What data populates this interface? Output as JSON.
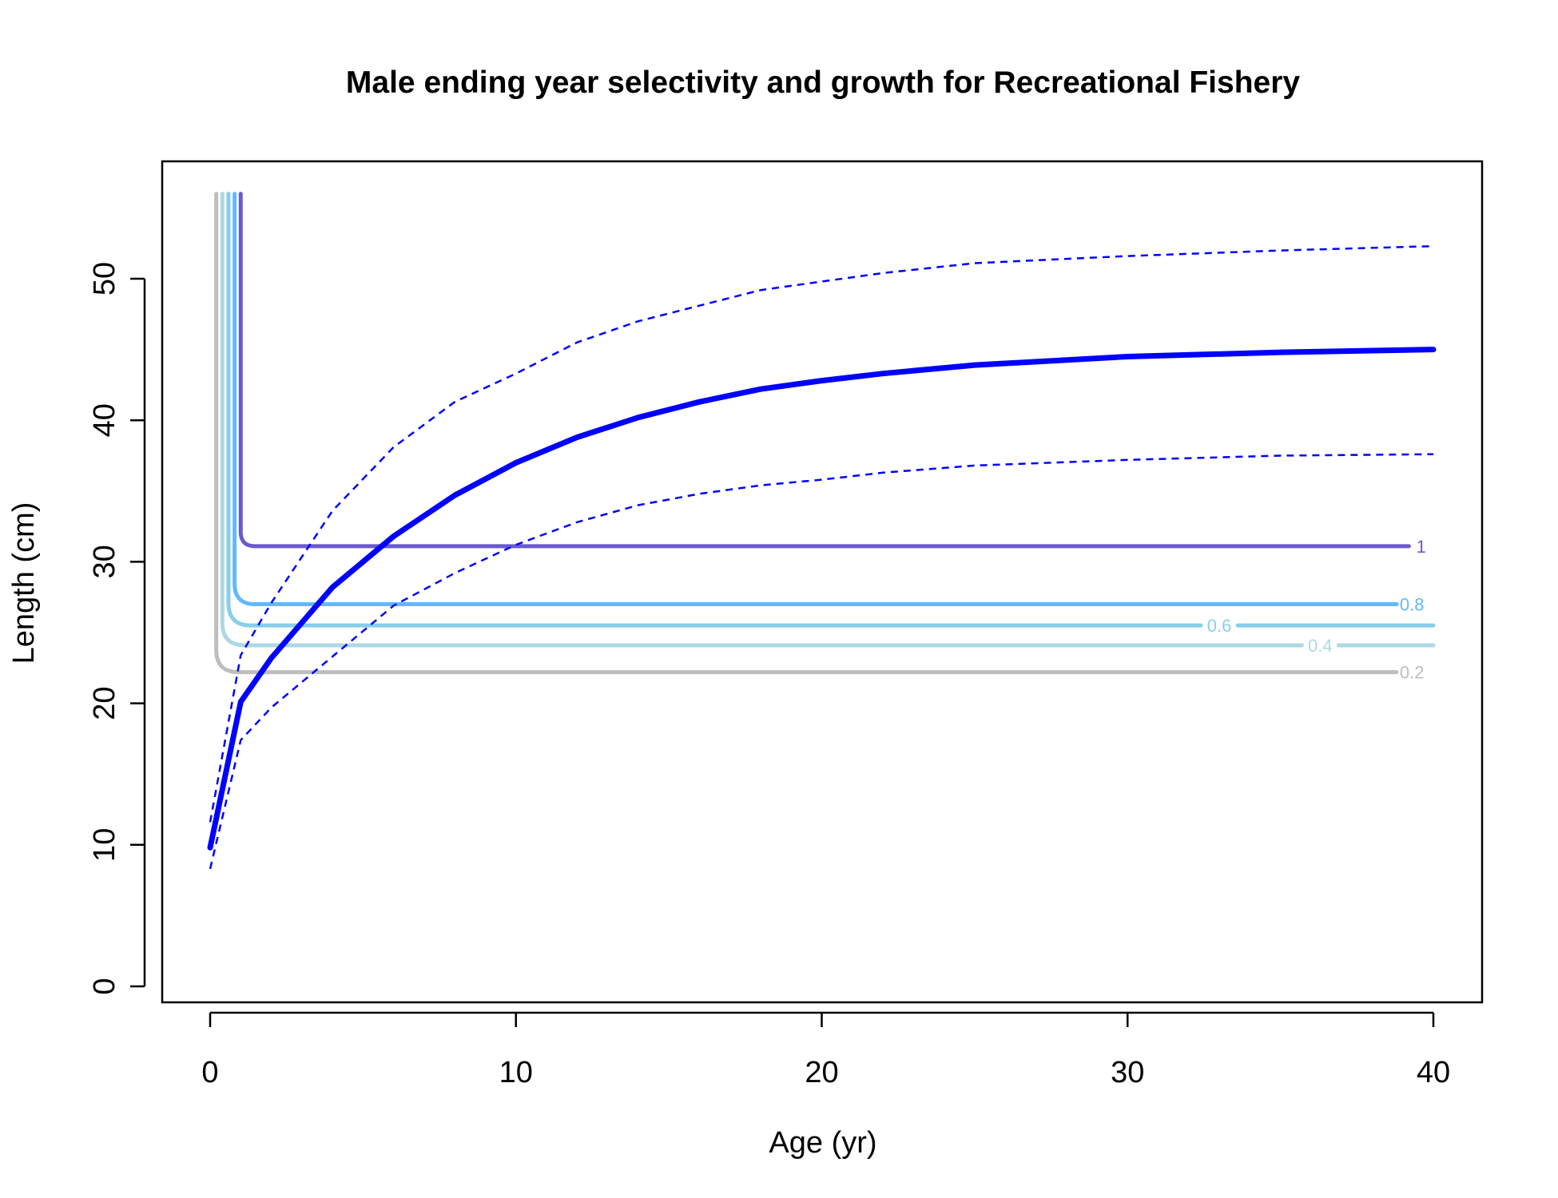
{
  "chart_data": {
    "type": "line",
    "title": "Male ending year selectivity and growth for Recreational Fishery",
    "xlabel": "Age (yr)",
    "ylabel": "Length (cm)",
    "xlim": [
      0,
      40
    ],
    "ylim": [
      0,
      56
    ],
    "xticks": [
      0,
      10,
      20,
      30,
      40
    ],
    "yticks": [
      0,
      10,
      20,
      30,
      40,
      50
    ],
    "grid": false,
    "growth": {
      "color": "#0000ff",
      "mean": [
        [
          0,
          9.8
        ],
        [
          1,
          20.1
        ],
        [
          2,
          23.2
        ],
        [
          4,
          28.2
        ],
        [
          6,
          31.8
        ],
        [
          8,
          34.7
        ],
        [
          10,
          37.0
        ],
        [
          12,
          38.8
        ],
        [
          14,
          40.2
        ],
        [
          16,
          41.3
        ],
        [
          18,
          42.2
        ],
        [
          20,
          42.8
        ],
        [
          22,
          43.3
        ],
        [
          25,
          43.9
        ],
        [
          30,
          44.5
        ],
        [
          35,
          44.8
        ],
        [
          40,
          45.0
        ]
      ],
      "upper": [
        [
          0,
          11.6
        ],
        [
          1,
          23.4
        ],
        [
          2,
          27.1
        ],
        [
          4,
          33.6
        ],
        [
          6,
          38.1
        ],
        [
          8,
          41.3
        ],
        [
          10,
          43.3
        ],
        [
          12,
          45.5
        ],
        [
          14,
          47.0
        ],
        [
          16,
          48.1
        ],
        [
          18,
          49.2
        ],
        [
          20,
          49.8
        ],
        [
          22,
          50.4
        ],
        [
          25,
          51.1
        ],
        [
          30,
          51.6
        ],
        [
          35,
          52.0
        ],
        [
          40,
          52.3
        ]
      ],
      "lower": [
        [
          0,
          8.3
        ],
        [
          1,
          17.4
        ],
        [
          2,
          19.7
        ],
        [
          4,
          23.3
        ],
        [
          6,
          26.9
        ],
        [
          8,
          29.2
        ],
        [
          10,
          31.2
        ],
        [
          12,
          32.8
        ],
        [
          14,
          34.0
        ],
        [
          16,
          34.8
        ],
        [
          18,
          35.4
        ],
        [
          20,
          35.8
        ],
        [
          22,
          36.3
        ],
        [
          25,
          36.8
        ],
        [
          30,
          37.2
        ],
        [
          35,
          37.5
        ],
        [
          40,
          37.6
        ]
      ]
    },
    "contours": [
      {
        "label": "0.2",
        "level": 0.2,
        "color": "#bebebe",
        "x_vert": 0.2,
        "length": 22.2,
        "x_end": 38.8,
        "label_x": 39.3,
        "gap": null
      },
      {
        "label": "0.4",
        "level": 0.4,
        "color": "#add8e6",
        "x_vert": 0.4,
        "length": 24.1,
        "x_end": 40.0,
        "label_x": 36.3,
        "gap": [
          35.7,
          36.9
        ]
      },
      {
        "label": "0.6",
        "level": 0.6,
        "color": "#87ceeb",
        "x_vert": 0.6,
        "length": 25.5,
        "x_end": 40.0,
        "label_x": 33.0,
        "gap": [
          32.4,
          33.6
        ]
      },
      {
        "label": "0.8",
        "level": 0.8,
        "color": "#63b8ff",
        "x_vert": 0.8,
        "length": 27.0,
        "x_end": 38.8,
        "label_x": 39.3,
        "gap": null
      },
      {
        "label": "1",
        "level": 1.0,
        "color": "#6a5acd",
        "x_vert": 1.0,
        "length": 31.1,
        "x_end": 39.2,
        "label_x": 39.6,
        "gap": null
      }
    ]
  }
}
